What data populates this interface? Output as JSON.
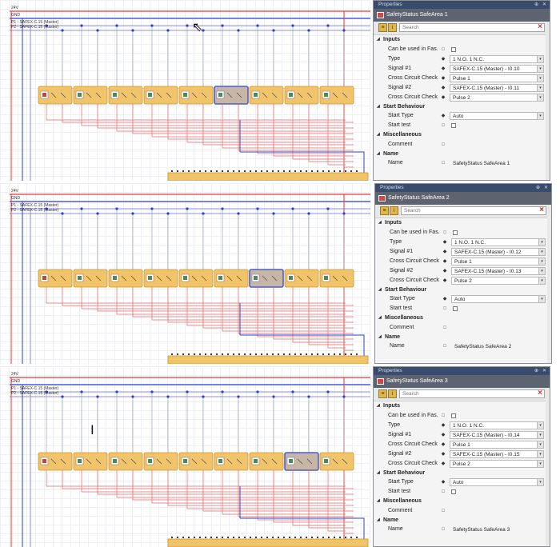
{
  "panes": [
    {
      "window_title": "Properties",
      "object_title": "SafetyStatus SafeArea 1",
      "search_placeholder": "Search",
      "selected_block": 5,
      "show_cursor": true,
      "cursor_type": "arrow",
      "categories": [
        {
          "name": "Inputs",
          "rows": [
            {
              "label": "Can be used in Fas...",
              "type": "checkbox",
              "value": ""
            },
            {
              "label": "Type",
              "type": "dropdown",
              "value": "1 N.O. 1 N.C."
            },
            {
              "label": "Signal #1",
              "type": "dropdown",
              "value": "SAFEX-C.15 (Master) - I0.10"
            },
            {
              "label": "Cross Circuit Check",
              "type": "dropdown",
              "value": "Pulse 1"
            },
            {
              "label": "Signal #2",
              "type": "dropdown",
              "value": "SAFEX-C.15 (Master) - I0.11"
            },
            {
              "label": "Cross Circuit Check",
              "type": "dropdown",
              "value": "Pulse 2"
            }
          ]
        },
        {
          "name": "Start Behaviour",
          "rows": [
            {
              "label": "Start Type",
              "type": "dropdown",
              "value": "Auto"
            },
            {
              "label": "Start test",
              "type": "checkbox",
              "value": ""
            }
          ]
        },
        {
          "name": "Miscellaneous",
          "rows": [
            {
              "label": "Comment",
              "type": "text",
              "value": ""
            }
          ]
        },
        {
          "name": "Name",
          "rows": [
            {
              "label": "Name",
              "type": "text",
              "value": "SafetyStatus SafeArea 1"
            }
          ]
        }
      ]
    },
    {
      "window_title": "Properties",
      "object_title": "SafetyStatus SafeArea 2",
      "search_placeholder": "Search",
      "selected_block": 6,
      "show_cursor": false,
      "cursor_type": "none",
      "categories": [
        {
          "name": "Inputs",
          "rows": [
            {
              "label": "Can be used in Fas...",
              "type": "checkbox",
              "value": ""
            },
            {
              "label": "Type",
              "type": "dropdown",
              "value": "1 N.O. 1 N.C."
            },
            {
              "label": "Signal #1",
              "type": "dropdown",
              "value": "SAFEX-C.15 (Master) - I0.12"
            },
            {
              "label": "Cross Circuit Check",
              "type": "dropdown",
              "value": "Pulse 1"
            },
            {
              "label": "Signal #2",
              "type": "dropdown",
              "value": "SAFEX-C.15 (Master) - I0.13"
            },
            {
              "label": "Cross Circuit Check",
              "type": "dropdown",
              "value": "Pulse 2"
            }
          ]
        },
        {
          "name": "Start Behaviour",
          "rows": [
            {
              "label": "Start Type",
              "type": "dropdown",
              "value": "Auto"
            },
            {
              "label": "Start test",
              "type": "checkbox",
              "value": ""
            }
          ]
        },
        {
          "name": "Miscellaneous",
          "rows": [
            {
              "label": "Comment",
              "type": "text",
              "value": ""
            }
          ]
        },
        {
          "name": "Name",
          "rows": [
            {
              "label": "Name",
              "type": "text",
              "value": "SafetyStatus SafeArea 2"
            }
          ]
        }
      ]
    },
    {
      "window_title": "Properties",
      "object_title": "SafetyStatus SafeArea 3",
      "search_placeholder": "Search",
      "selected_block": 7,
      "show_cursor": true,
      "cursor_type": "text-beam",
      "categories": [
        {
          "name": "Inputs",
          "rows": [
            {
              "label": "Can be used in Fas...",
              "type": "checkbox",
              "value": ""
            },
            {
              "label": "Type",
              "type": "dropdown",
              "value": "1 N.O. 1 N.C."
            },
            {
              "label": "Signal #1",
              "type": "dropdown",
              "value": "SAFEX-C.15 (Master) - I0.14"
            },
            {
              "label": "Cross Circuit Check",
              "type": "dropdown",
              "value": "Pulse 1"
            },
            {
              "label": "Signal #2",
              "type": "dropdown",
              "value": "SAFEX-C.15 (Master) - I0.15"
            },
            {
              "label": "Cross Circuit Check",
              "type": "dropdown",
              "value": "Pulse 2"
            }
          ]
        },
        {
          "name": "Start Behaviour",
          "rows": [
            {
              "label": "Start Type",
              "type": "dropdown",
              "value": "Auto"
            },
            {
              "label": "Start test",
              "type": "checkbox",
              "value": ""
            }
          ]
        },
        {
          "name": "Miscellaneous",
          "rows": [
            {
              "label": "Comment",
              "type": "text",
              "value": ""
            }
          ]
        },
        {
          "name": "Name",
          "rows": [
            {
              "label": "Name",
              "type": "text",
              "value": "SafetyStatus SafeArea 3"
            }
          ]
        }
      ]
    }
  ],
  "rails": [
    "24V",
    "GND",
    "P1 - SAFEX-C.15 (Master)",
    "P2 - SAFEX-C.15 (Master)"
  ],
  "block_count": 9,
  "colors": {
    "rail_24v": "#e03a3a",
    "rail_gnd": "#2a3fd6",
    "rail_pulse": "#6a6fc6",
    "wire_red": "#e46a6a",
    "wire_blue": "#2a3fd6",
    "block_fill": "#f2c46a",
    "block_border": "#c9952f",
    "selection": "#4d5fc9",
    "panel_header": "#3a4c6e"
  },
  "icons": {
    "pin": "pushpin-icon",
    "close": "close-icon",
    "clear_search": "clear-search-icon",
    "categorized": "categorized-icon",
    "alphabetical": "alphabetical-icon",
    "expand": "collapse-triangle-icon",
    "dropdown": "dropdown-arrow-icon",
    "diamond": "diamond-icon",
    "square": "square-icon"
  }
}
